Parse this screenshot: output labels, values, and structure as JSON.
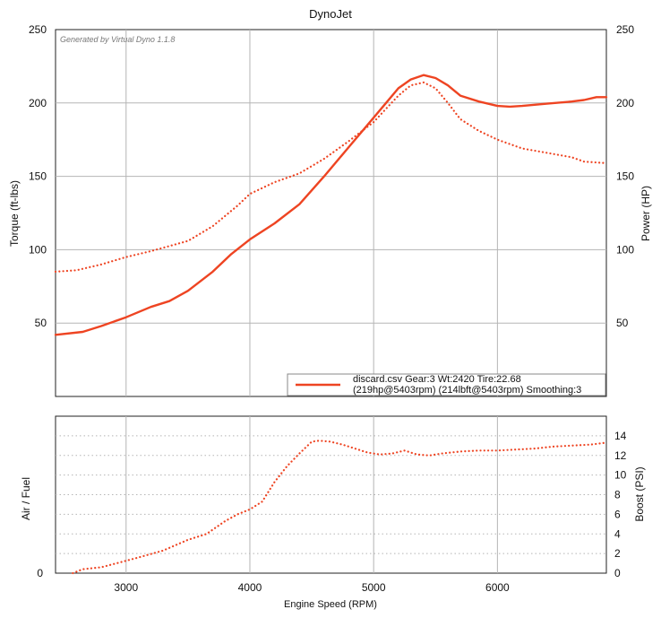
{
  "title": "DynoJet",
  "watermark": "Generated by Virtual Dyno 1.1.8",
  "colors": {
    "series": "#ee4422",
    "grid": "#b5b5b5",
    "frame": "#222222"
  },
  "legend": {
    "line1": "discard.csv Gear:3 Wt:2420 Tire:22.68",
    "line2": "(219hp@5403rpm) (214lbft@5403rpm) Smoothing:3"
  },
  "top_panel": {
    "ylabel_left": "Torque (ft-lbs)",
    "ylabel_right": "Power (HP)",
    "left_ticks": [
      "250",
      "200",
      "150",
      "100",
      "50"
    ],
    "right_ticks": [
      "250",
      "200",
      "150",
      "100",
      "50"
    ]
  },
  "bottom_panel": {
    "ylabel_left": "Air / Fuel",
    "ylabel_right": "Boost (PSI)",
    "left_ticks": [
      "0"
    ],
    "right_ticks": [
      "14",
      "12",
      "10",
      "8",
      "6",
      "4",
      "2",
      "0"
    ]
  },
  "xaxis": {
    "label": "Engine Speed (RPM)",
    "ticks": [
      "3000",
      "4000",
      "5000",
      "6000"
    ]
  },
  "chart_data": [
    {
      "type": "line",
      "title": "DynoJet",
      "xlabel": "",
      "ylabel": "Torque (ft-lbs)",
      "y2label": "Power (HP)",
      "xlim": [
        2430,
        6880
      ],
      "ylim": [
        0,
        250
      ],
      "series": [
        {
          "name": "Power (HP)",
          "style": "solid",
          "x": [
            2430,
            2650,
            2800,
            3000,
            3200,
            3350,
            3500,
            3700,
            3850,
            4000,
            4200,
            4400,
            4600,
            4800,
            4950,
            5100,
            5200,
            5300,
            5403,
            5500,
            5600,
            5700,
            5850,
            6000,
            6100,
            6200,
            6400,
            6600,
            6700,
            6800,
            6880
          ],
          "values": [
            42,
            44,
            48,
            54,
            61,
            65,
            72,
            85,
            97,
            107,
            118,
            131,
            150,
            170,
            185,
            200,
            210,
            216,
            219,
            217,
            212,
            205,
            201,
            198,
            197.5,
            198,
            199.5,
            201,
            202,
            204,
            204
          ]
        },
        {
          "name": "Torque (ft-lbs)",
          "style": "dotted",
          "x": [
            2430,
            2600,
            2800,
            3000,
            3200,
            3500,
            3700,
            3900,
            4000,
            4200,
            4400,
            4600,
            4800,
            5000,
            5100,
            5200,
            5300,
            5403,
            5500,
            5600,
            5700,
            5850,
            6000,
            6200,
            6400,
            6600,
            6700,
            6880
          ],
          "values": [
            85,
            86,
            90,
            95,
            99,
            106,
            116,
            130,
            138,
            146,
            152,
            162,
            174,
            187,
            196,
            205,
            212,
            214,
            210,
            200,
            189,
            181,
            175,
            169,
            166,
            163,
            160,
            159
          ]
        }
      ]
    },
    {
      "type": "line",
      "title": "",
      "xlabel": "Engine Speed (RPM)",
      "ylabel": "Air / Fuel",
      "y2label": "Boost (PSI)",
      "xlim": [
        2430,
        6880
      ],
      "ylim": [
        0,
        16
      ],
      "series": [
        {
          "name": "Boost (PSI)",
          "style": "dotted",
          "x": [
            2570,
            2650,
            2800,
            2950,
            3100,
            3300,
            3500,
            3650,
            3800,
            3900,
            4000,
            4100,
            4200,
            4300,
            4400,
            4500,
            4560,
            4650,
            4750,
            4850,
            4950,
            5050,
            5150,
            5250,
            5350,
            5450,
            5550,
            5700,
            5850,
            6000,
            6150,
            6300,
            6450,
            6600,
            6750,
            6880
          ],
          "values": [
            0,
            0.4,
            0.6,
            1.1,
            1.6,
            2.3,
            3.4,
            4.0,
            5.3,
            6.0,
            6.5,
            7.3,
            9.3,
            10.9,
            12.2,
            13.4,
            13.5,
            13.4,
            13.1,
            12.7,
            12.3,
            12.1,
            12.2,
            12.5,
            12.1,
            12.0,
            12.2,
            12.4,
            12.5,
            12.5,
            12.6,
            12.7,
            12.9,
            13.0,
            13.1,
            13.3
          ]
        }
      ]
    }
  ]
}
